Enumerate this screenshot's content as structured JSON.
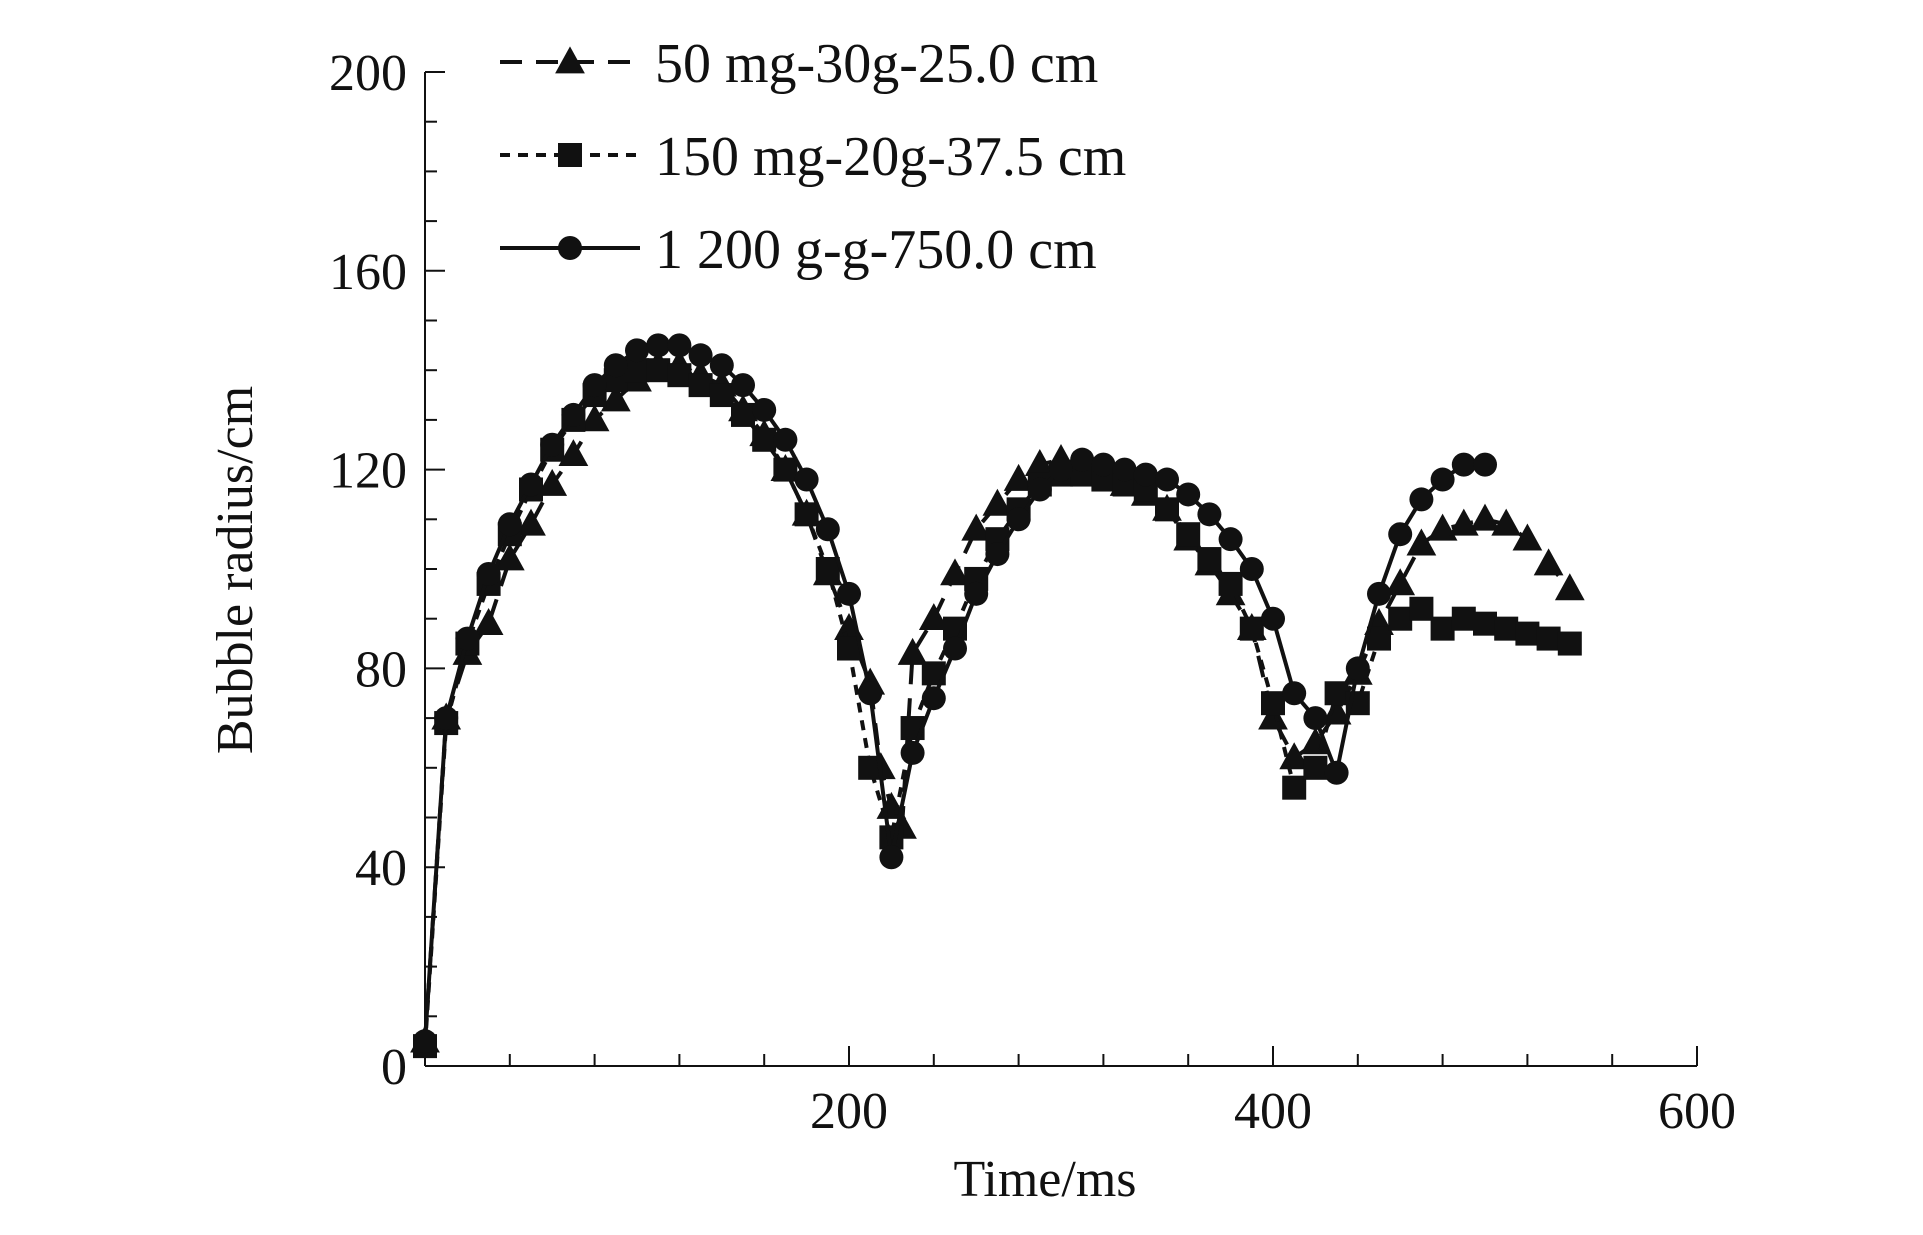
{
  "chart_data": {
    "type": "line",
    "title": "",
    "xlabel": "Time/ms",
    "ylabel": "Bubble radius/cm",
    "xlim": [
      0,
      600
    ],
    "ylim": [
      0,
      200
    ],
    "xticks": [
      200,
      400,
      600
    ],
    "yticks": [
      0,
      40,
      80,
      120,
      160,
      200
    ],
    "grid": false,
    "legend_position": "top-left",
    "series": [
      {
        "name": "50 mg-30g-25.0 cm",
        "marker": "triangle",
        "line_style": "dashed",
        "color": "#111111",
        "x": [
          0,
          10,
          20,
          30,
          40,
          50,
          60,
          70,
          80,
          90,
          100,
          110,
          120,
          130,
          140,
          150,
          160,
          170,
          180,
          190,
          200,
          210,
          215,
          220,
          225,
          230,
          240,
          250,
          260,
          270,
          280,
          290,
          300,
          310,
          320,
          330,
          340,
          350,
          360,
          370,
          380,
          390,
          400,
          410,
          420,
          430,
          440,
          450,
          460,
          470,
          480,
          490,
          500,
          510,
          520,
          530,
          540
        ],
        "y": [
          5,
          70,
          83,
          89,
          102,
          109,
          117,
          123,
          130,
          134,
          138,
          141,
          141,
          139,
          137,
          132,
          127,
          120,
          111,
          99,
          88,
          77,
          60,
          52,
          48,
          83,
          90,
          99,
          108,
          113,
          118,
          121,
          122,
          121,
          119,
          117,
          115,
          112,
          106,
          101,
          95,
          88,
          70,
          62,
          65,
          71,
          79,
          89,
          97,
          105,
          108,
          109,
          110,
          109,
          106,
          101,
          96
        ]
      },
      {
        "name": "150 mg-20g-37.5 cm",
        "marker": "square",
        "line_style": "dotted",
        "color": "#111111",
        "x": [
          0,
          10,
          20,
          30,
          40,
          50,
          60,
          70,
          80,
          90,
          100,
          110,
          120,
          130,
          140,
          150,
          160,
          170,
          180,
          190,
          200,
          210,
          220,
          230,
          240,
          250,
          260,
          270,
          280,
          290,
          300,
          310,
          320,
          330,
          340,
          350,
          360,
          370,
          380,
          390,
          400,
          410,
          420,
          430,
          440,
          450,
          460,
          470,
          480,
          490,
          500,
          510,
          520,
          530,
          540
        ],
        "y": [
          4,
          69,
          85,
          97,
          107,
          116,
          124,
          130,
          135,
          138,
          140,
          140,
          139,
          137,
          135,
          131,
          126,
          120,
          111,
          100,
          84,
          60,
          46,
          68,
          79,
          88,
          98,
          106,
          112,
          117,
          119,
          119,
          118,
          117,
          116,
          112,
          107,
          102,
          97,
          88,
          73,
          56,
          60,
          75,
          73,
          86,
          90,
          92,
          88,
          90,
          89,
          88,
          87,
          86,
          85
        ]
      },
      {
        "name": "1 200 g-g-750.0 cm",
        "marker": "circle",
        "line_style": "solid",
        "color": "#111111",
        "x": [
          0,
          10,
          20,
          30,
          40,
          50,
          60,
          70,
          80,
          90,
          100,
          110,
          120,
          130,
          140,
          150,
          160,
          170,
          180,
          190,
          200,
          210,
          220,
          230,
          240,
          250,
          260,
          270,
          280,
          290,
          300,
          310,
          320,
          330,
          340,
          350,
          360,
          370,
          380,
          390,
          400,
          410,
          420,
          430,
          440,
          450,
          460,
          470,
          480,
          490,
          500
        ],
        "y": [
          5,
          70,
          86,
          99,
          109,
          117,
          125,
          131,
          137,
          141,
          144,
          145,
          145,
          143,
          141,
          137,
          132,
          126,
          118,
          108,
          95,
          75,
          42,
          63,
          74,
          84,
          95,
          103,
          110,
          116,
          120,
          122,
          121,
          120,
          119,
          118,
          115,
          111,
          106,
          100,
          90,
          75,
          70,
          59,
          80,
          95,
          107,
          114,
          118,
          121,
          121
        ]
      }
    ]
  }
}
